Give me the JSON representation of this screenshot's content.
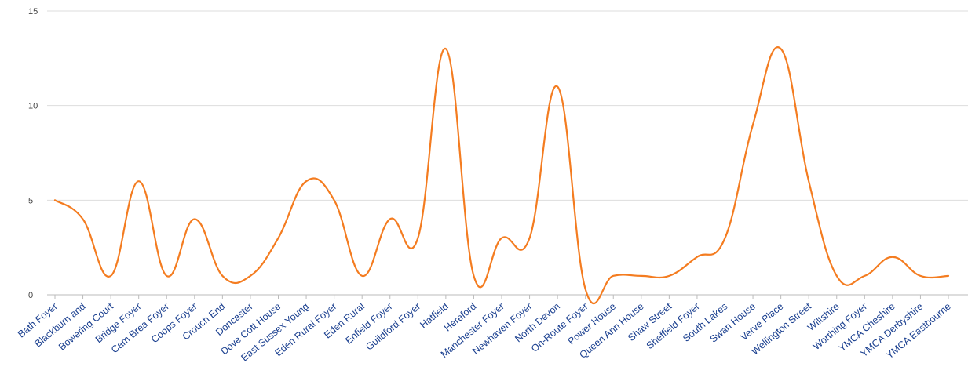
{
  "chart_data": {
    "type": "line",
    "title": "",
    "xlabel": "",
    "ylabel": "",
    "ylim": [
      0,
      15
    ],
    "yticks": [
      0,
      5,
      10,
      15
    ],
    "grid": true,
    "smooth": true,
    "categories": [
      "Bath Foyer",
      "Blackburn and",
      "Bowering Court",
      "Bridge Foyer",
      "Cam Brea Foyer",
      "Coops Foyer",
      "Crouch End",
      "Doncaster",
      "Dove Cott House",
      "East Sussex Young",
      "Eden Rural Foyer",
      "Eden Rural",
      "Enfield Foyer",
      "Guildford Foyer",
      "Hatfield",
      "Hereford",
      "Manchester Foyer",
      "Newhaven Foyer",
      "North Devon",
      "On-Route Foyer",
      "Power House",
      "Queen Ann House",
      "Shaw Street",
      "Sheffield Foyer",
      "South Lakes",
      "Swan House",
      "Verve Place",
      "Wellington Street",
      "Wiltshire",
      "Worthing Foyer",
      "YMCA Cheshire",
      "YMCA Derbyshire",
      "YMCA Eastbourne"
    ],
    "series": [
      {
        "values": [
          5,
          4,
          1,
          6,
          1,
          4,
          1,
          1,
          3,
          6,
          5,
          1,
          4,
          3,
          13,
          1,
          3,
          3,
          11,
          0.3,
          1,
          1,
          1,
          2,
          3,
          9,
          13,
          6,
          1,
          1,
          2,
          1,
          1
        ],
        "color": "#f47c20"
      }
    ]
  }
}
